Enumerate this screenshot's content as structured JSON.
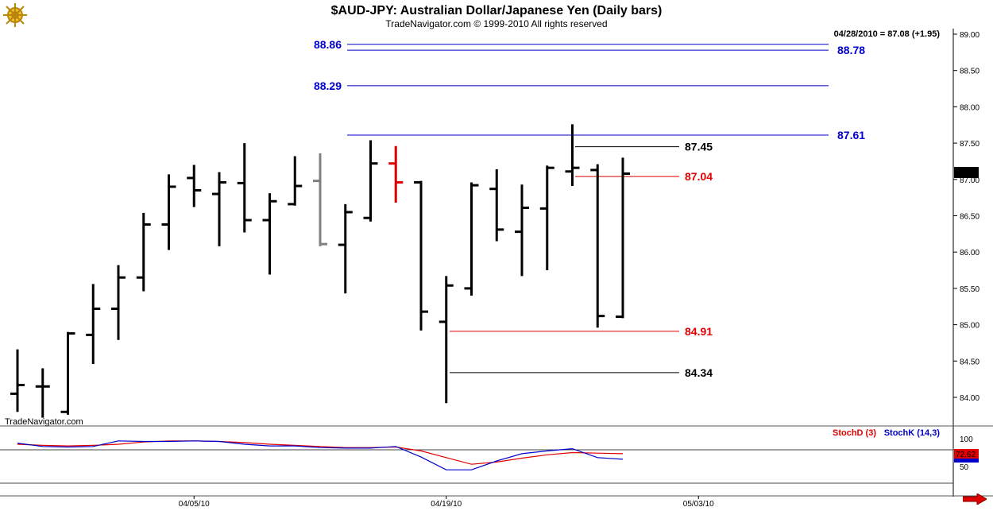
{
  "header": {
    "title": "$AUD-JPY:  Australian Dollar/Japanese Yen  (Daily bars)",
    "subtitle": "TradeNavigator.com © 1999-2010 All rights reserved",
    "quote": "04/28/2010 = 87.08 (+1.95)",
    "watermark": "TradeNavigator.com",
    "last_price_tag": "87.08",
    "stoch_d_label": "StochD (3)",
    "stoch_k_label": "StochK (14,3)",
    "stoch_value_tag": "72.62"
  },
  "colors": {
    "bar": "#000000",
    "bar_gray": "#808080",
    "bar_red": "#e00000",
    "level_blue": "#0000cc",
    "level_red": "#e00000",
    "stoch_d": "#e00000",
    "stoch_k": "#0000cc",
    "arrow": "#e00000"
  },
  "icons": {
    "logo": "ship-wheel-icon",
    "scroll": "arrow-right-icon"
  },
  "chart_data": [
    {
      "type": "ohlc",
      "title": "$AUD-JPY:  Australian Dollar/Japanese Yen  (Daily bars)",
      "ylim": [
        83.7,
        89.1
      ],
      "y_ticks": [
        "84.00",
        "84.50",
        "85.00",
        "85.50",
        "86.00",
        "86.50",
        "87.00",
        "87.50",
        "88.00",
        "88.50",
        "89.00"
      ],
      "x_tick_labels": [
        {
          "label": "04/05/10",
          "index": 7
        },
        {
          "label": "04/19/10",
          "index": 17
        },
        {
          "label": "05/03/10",
          "index": 27
        }
      ],
      "bars": [
        {
          "i": 0,
          "o": 84.05,
          "h": 84.66,
          "l": 83.8,
          "c": 84.17,
          "color": "black"
        },
        {
          "i": 1,
          "o": 84.15,
          "h": 84.4,
          "l": 83.72,
          "c": 84.15,
          "color": "black"
        },
        {
          "i": 2,
          "o": 83.8,
          "h": 84.9,
          "l": 83.76,
          "c": 84.88,
          "color": "black"
        },
        {
          "i": 3,
          "o": 84.86,
          "h": 85.56,
          "l": 84.46,
          "c": 85.22,
          "color": "black"
        },
        {
          "i": 4,
          "o": 85.22,
          "h": 85.82,
          "l": 84.79,
          "c": 85.65,
          "color": "black"
        },
        {
          "i": 5,
          "o": 85.65,
          "h": 86.54,
          "l": 85.46,
          "c": 86.38,
          "color": "black"
        },
        {
          "i": 6,
          "o": 86.38,
          "h": 87.07,
          "l": 86.03,
          "c": 86.9,
          "color": "black"
        },
        {
          "i": 7,
          "o": 87.02,
          "h": 87.2,
          "l": 86.62,
          "c": 86.85,
          "color": "black"
        },
        {
          "i": 8,
          "o": 86.8,
          "h": 87.1,
          "l": 86.08,
          "c": 86.96,
          "color": "black"
        },
        {
          "i": 9,
          "o": 86.95,
          "h": 87.5,
          "l": 86.27,
          "c": 86.44,
          "color": "black"
        },
        {
          "i": 10,
          "o": 86.44,
          "h": 86.81,
          "l": 85.69,
          "c": 86.7,
          "color": "black"
        },
        {
          "i": 11,
          "o": 86.66,
          "h": 87.32,
          "l": 86.64,
          "c": 86.91,
          "color": "black"
        },
        {
          "i": 12,
          "o": 86.98,
          "h": 87.36,
          "l": 86.08,
          "c": 86.11,
          "color": "gray"
        },
        {
          "i": 13,
          "o": 86.1,
          "h": 86.66,
          "l": 85.43,
          "c": 86.55,
          "color": "black"
        },
        {
          "i": 14,
          "o": 86.47,
          "h": 87.54,
          "l": 86.42,
          "c": 87.22,
          "color": "black"
        },
        {
          "i": 15,
          "o": 87.22,
          "h": 87.46,
          "l": 86.68,
          "c": 86.96,
          "color": "red"
        },
        {
          "i": 16,
          "o": 86.96,
          "h": 86.98,
          "l": 84.92,
          "c": 85.18,
          "color": "black"
        },
        {
          "i": 17,
          "o": 85.04,
          "h": 85.67,
          "l": 83.92,
          "c": 85.54,
          "color": "black"
        },
        {
          "i": 18,
          "o": 85.5,
          "h": 86.96,
          "l": 85.4,
          "c": 86.92,
          "color": "black"
        },
        {
          "i": 19,
          "o": 86.87,
          "h": 87.14,
          "l": 86.15,
          "c": 86.31,
          "color": "black"
        },
        {
          "i": 20,
          "o": 86.28,
          "h": 86.93,
          "l": 85.67,
          "c": 86.61,
          "color": "black"
        },
        {
          "i": 21,
          "o": 86.6,
          "h": 87.19,
          "l": 85.75,
          "c": 87.16,
          "color": "black"
        },
        {
          "i": 22,
          "o": 87.11,
          "h": 87.76,
          "l": 86.91,
          "c": 87.16,
          "color": "black"
        },
        {
          "i": 23,
          "o": 87.13,
          "h": 87.21,
          "l": 84.96,
          "c": 85.12,
          "color": "black"
        },
        {
          "i": 24,
          "o": 85.11,
          "h": 87.3,
          "l": 85.09,
          "c": 87.08,
          "color": "black"
        }
      ],
      "levels": [
        {
          "value": 88.86,
          "label": "88.86",
          "color": "blue",
          "label_side": "left"
        },
        {
          "value": 88.78,
          "label": "88.78",
          "color": "blue",
          "label_side": "right"
        },
        {
          "value": 88.29,
          "label": "88.29",
          "color": "blue",
          "label_side": "left"
        },
        {
          "value": 87.61,
          "label": "87.61",
          "color": "blue",
          "label_side": "right"
        },
        {
          "value": 87.45,
          "label": "87.45",
          "color": "black",
          "label_side": "mid"
        },
        {
          "value": 87.04,
          "label": "87.04",
          "color": "red",
          "label_side": "mid"
        },
        {
          "value": 84.91,
          "label": "84.91",
          "color": "red",
          "label_side": "mid"
        },
        {
          "value": 84.34,
          "label": "84.34",
          "color": "black",
          "label_side": "mid"
        }
      ]
    },
    {
      "type": "line",
      "title": "",
      "ylim": [
        0,
        100
      ],
      "y_ticks": [
        "100",
        "50"
      ],
      "reference_lines": [
        80,
        20
      ],
      "series": [
        {
          "name": "StochD (3)",
          "color": "red",
          "x": [
            0,
            1,
            2,
            3,
            4,
            5,
            6,
            7,
            8,
            9,
            10,
            11,
            12,
            13,
            14,
            15,
            16,
            17,
            18,
            19,
            20,
            21,
            22,
            23,
            24
          ],
          "values": [
            90,
            88,
            87,
            88,
            90,
            94,
            96,
            96,
            95,
            93,
            90,
            88,
            86,
            84,
            84,
            85,
            78,
            66,
            54,
            58,
            65,
            71,
            75,
            74,
            73
          ]
        },
        {
          "name": "StochK (14,3)",
          "color": "blue",
          "x": [
            0,
            1,
            2,
            3,
            4,
            5,
            6,
            7,
            8,
            9,
            10,
            11,
            12,
            13,
            14,
            15,
            16,
            17,
            18,
            19,
            20,
            21,
            22,
            23,
            24
          ],
          "values": [
            92,
            86,
            85,
            86,
            96,
            95,
            95,
            96,
            95,
            90,
            87,
            87,
            84,
            83,
            83,
            86,
            67,
            44,
            44,
            60,
            73,
            78,
            82,
            66,
            63
          ]
        }
      ]
    }
  ]
}
